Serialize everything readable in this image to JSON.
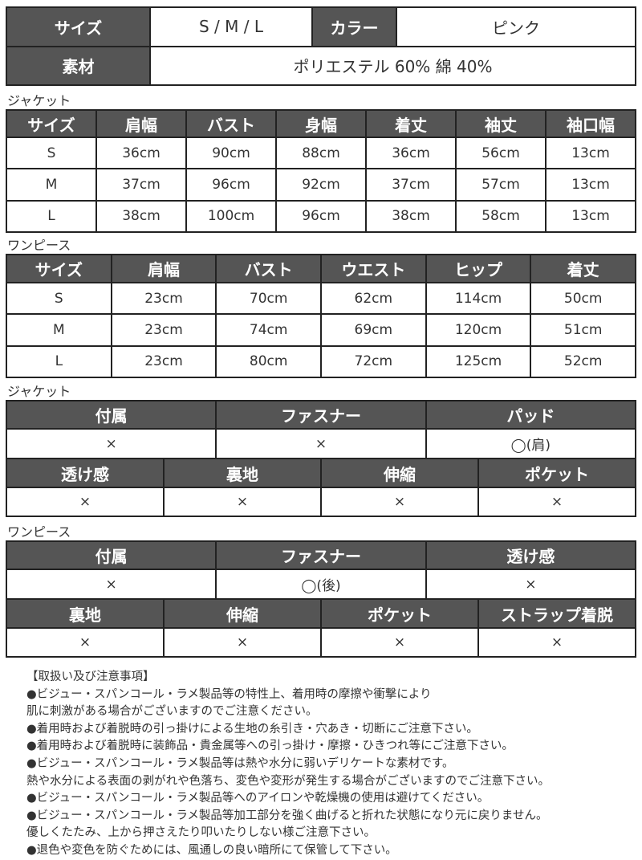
{
  "summary": {
    "size_label": "サイズ",
    "size_value": "S / M / L",
    "color_label": "カラー",
    "color_value": "ピンク",
    "material_label": "素材",
    "material_value": "ポリエステル 60%  綿 40%"
  },
  "jacket_label": "ジャケット",
  "jacket_table": {
    "headers": [
      "サイズ",
      "肩幅",
      "バスト",
      "身幅",
      "着丈",
      "袖丈",
      "袖口幅"
    ],
    "rows": [
      [
        "S",
        "36cm",
        "90cm",
        "88cm",
        "36cm",
        "56cm",
        "13cm"
      ],
      [
        "M",
        "37cm",
        "96cm",
        "92cm",
        "37cm",
        "57cm",
        "13cm"
      ],
      [
        "L",
        "38cm",
        "100cm",
        "96cm",
        "38cm",
        "58cm",
        "13cm"
      ]
    ]
  },
  "dress_label": "ワンピース",
  "dress_table": {
    "headers": [
      "サイズ",
      "肩幅",
      "バスト",
      "ウエスト",
      "ヒップ",
      "着丈"
    ],
    "rows": [
      [
        "S",
        "23cm",
        "70cm",
        "62cm",
        "114cm",
        "50cm"
      ],
      [
        "M",
        "23cm",
        "74cm",
        "69cm",
        "120cm",
        "51cm"
      ],
      [
        "L",
        "23cm",
        "80cm",
        "72cm",
        "125cm",
        "52cm"
      ]
    ]
  },
  "jacket_attr_label": "ジャケット",
  "jacket_attrs": {
    "row1_headers": [
      "付属",
      "ファスナー",
      "パッド"
    ],
    "row1_values": [
      "×",
      "×",
      "◯(肩)"
    ],
    "row2_headers": [
      "透け感",
      "裏地",
      "伸縮",
      "ポケット"
    ],
    "row2_values": [
      "×",
      "×",
      "×",
      "×"
    ]
  },
  "dress_attr_label": "ワンピース",
  "dress_attrs": {
    "row1_headers": [
      "付属",
      "ファスナー",
      "透け感"
    ],
    "row1_values": [
      "×",
      "◯(後)",
      "×"
    ],
    "row2_headers": [
      "裏地",
      "伸縮",
      "ポケット",
      "ストラップ着脱"
    ],
    "row2_values": [
      "×",
      "×",
      "×",
      "×"
    ]
  },
  "notes": [
    "【取扱い及び注意事項】",
    "●ビジュー・スパンコール・ラメ製品等の特性上、着用時の摩擦や衝撃により",
    "肌に刺激がある場合がございますのでご注意ください。",
    "●着用時および着脱時の引っ掛けによる生地の糸引き・穴あき・切断にご注意下さい。",
    "●着用時および着脱時に装飾品・貴金属等への引っ掛け・摩擦・ひきつれ等にご注意下さい。",
    "●ビジュー・スパンコール・ラメ製品等は熱や水分に弱いデリケートな素材です。",
    "熱や水分による表面の剥がれや色落ち、変色や変形が発生する場合がございますのでご注意下さい。",
    "●ビジュー・スパンコール・ラメ製品等へのアイロンや乾燥機の使用は避けてください。",
    "●ビジュー・スパンコール・ラメ製品等加工部分を強く曲げると折れた状態になり元に戻りません。",
    "優しくたたみ、上から押さえたり叩いたりしない様ご注意下さい。",
    "●退色や変色を防ぐためには、風通しの良い暗所にて保管して下さい。"
  ]
}
